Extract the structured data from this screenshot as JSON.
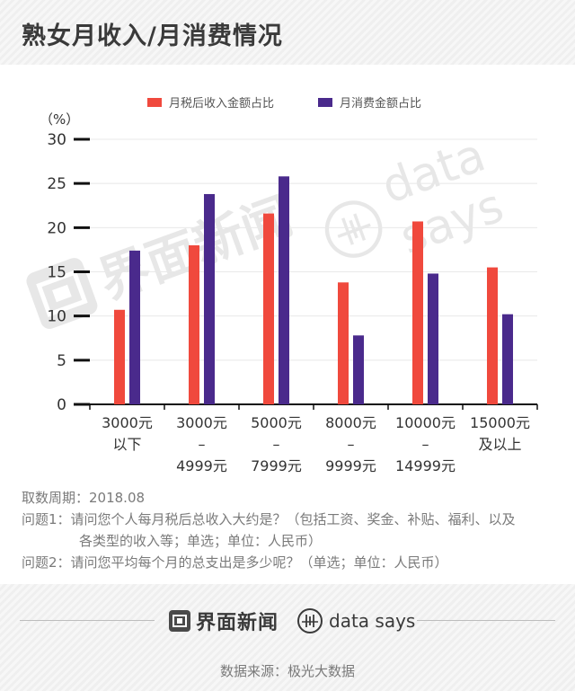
{
  "title": "熟女月收入/月消费情况",
  "chart_data": {
    "type": "bar",
    "unit_label": "（%）",
    "categories": [
      [
        "3000元",
        "以下"
      ],
      [
        "3000元",
        "–",
        "4999元"
      ],
      [
        "5000元",
        "–",
        "7999元"
      ],
      [
        "8000元",
        "–",
        "9999元"
      ],
      [
        "10000元",
        "–",
        "14999元"
      ],
      [
        "15000元",
        "及以上"
      ]
    ],
    "series": [
      {
        "name": "月税后收入金额占比",
        "color": "#f0493d",
        "values": [
          10.7,
          18.0,
          21.6,
          13.8,
          20.7,
          15.5
        ]
      },
      {
        "name": "月消费金额占比",
        "color": "#4a2a8c",
        "values": [
          17.4,
          23.8,
          25.8,
          7.8,
          14.8,
          10.2
        ]
      }
    ],
    "ylim": [
      0,
      30
    ],
    "yticks": [
      "0",
      "5",
      "10",
      "15",
      "20",
      "25",
      "30"
    ],
    "grid": true,
    "legend": "top"
  },
  "notes": {
    "period": "取数周期：2018.08",
    "q1": "问题1：请问您个人每月税后总收入大约是？（包括工资、奖金、补贴、福利、以及",
    "q1b": "各类型的收入等；单选；单位：人民币）",
    "q2": "问题2：请问您平均每个月的总支出是多少呢？（单选；单位：人民币）"
  },
  "footer": {
    "brand_jm": "界面新闻",
    "brand_ds": "data says",
    "source": "数据来源：极光大数据"
  },
  "watermarks": {
    "jm": "界面新闻",
    "ds": "data says"
  },
  "colors": {
    "income": "#f0493d",
    "spend": "#4a2a8c",
    "axis": "#111111",
    "grid": "#e8e8e8"
  }
}
